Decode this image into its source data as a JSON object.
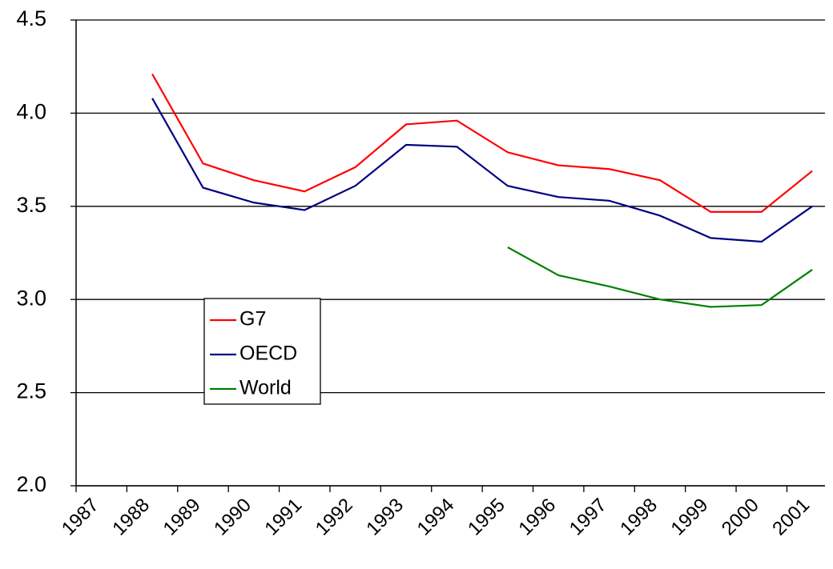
{
  "chart_data": {
    "type": "line",
    "x": [
      1988.5,
      1989.5,
      1990.5,
      1991.5,
      1992.5,
      1993.5,
      1994.5,
      1995.5,
      1996.5,
      1997.5,
      1998.5,
      1999.5,
      2000.5,
      2001.5
    ],
    "series": [
      {
        "name": "G7",
        "color": "#ff0000",
        "values": [
          4.21,
          3.73,
          3.64,
          3.58,
          3.71,
          3.94,
          3.96,
          3.79,
          3.72,
          3.7,
          3.64,
          3.47,
          3.47,
          3.69
        ]
      },
      {
        "name": "OECD",
        "color": "#000080",
        "values": [
          4.08,
          3.6,
          3.52,
          3.48,
          3.61,
          3.83,
          3.82,
          3.61,
          3.55,
          3.53,
          3.45,
          3.33,
          3.31,
          3.5
        ]
      },
      {
        "name": "World",
        "color": "#008000",
        "values": [
          null,
          null,
          null,
          null,
          null,
          null,
          null,
          3.28,
          3.13,
          3.07,
          3.0,
          2.96,
          2.97,
          3.16
        ]
      }
    ],
    "xlim": [
      1987,
      2001.75
    ],
    "xticks": [
      1987,
      1988,
      1989,
      1990,
      1991,
      1992,
      1993,
      1994,
      1995,
      1996,
      1997,
      1998,
      1999,
      2000,
      2001
    ],
    "ylim": [
      2.0,
      4.5
    ],
    "yticks": [
      {
        "value": 2.0,
        "label": "2.0"
      },
      2.5,
      {
        "value": 3.0,
        "label": "3.0"
      },
      3.5,
      {
        "value": 4.0,
        "label": "4.0"
      },
      4.5
    ],
    "grid": true,
    "legend_position": "center left"
  }
}
